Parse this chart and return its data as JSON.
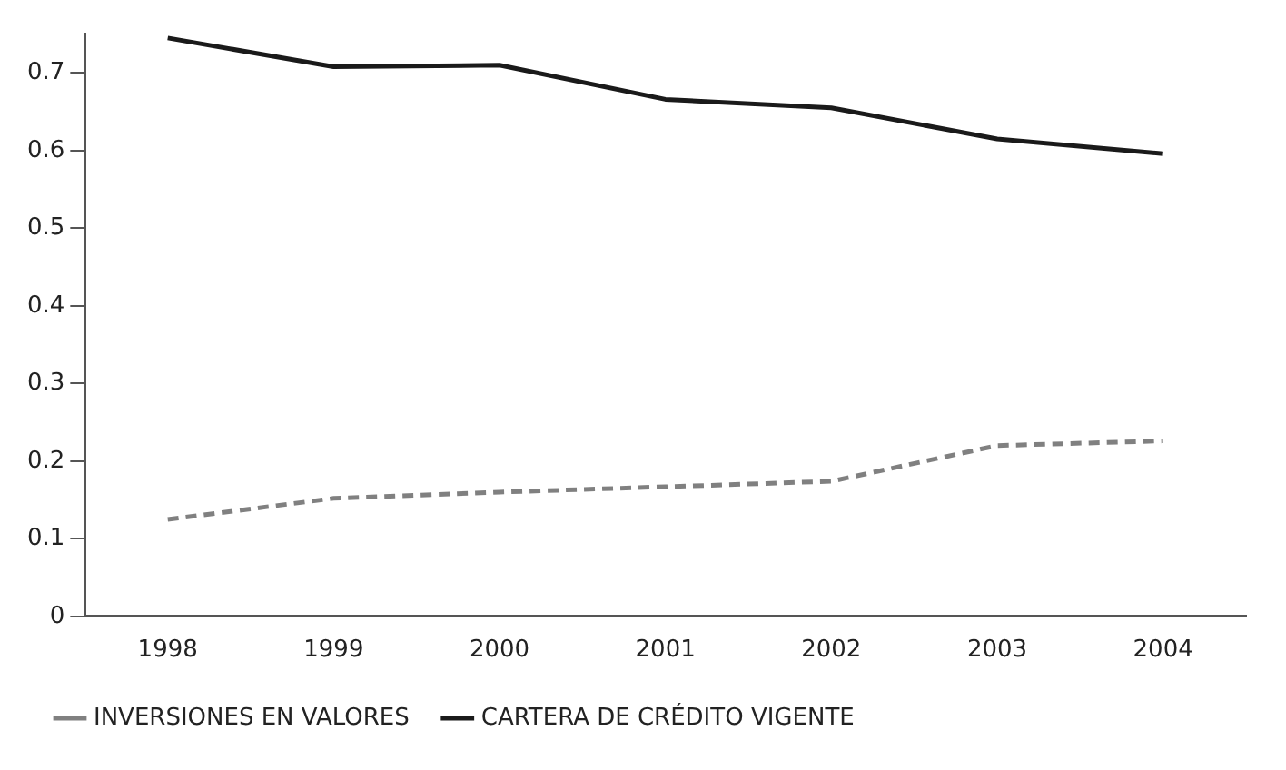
{
  "chart_data": {
    "type": "line",
    "categories": [
      "1998",
      "1999",
      "2000",
      "2001",
      "2002",
      "2003",
      "2004"
    ],
    "series": [
      {
        "name": "INVERSIONES EN VALORES",
        "color": "#808080",
        "line_style": "dashed",
        "values": [
          0.125,
          0.152,
          0.16,
          0.167,
          0.174,
          0.22,
          0.226
        ]
      },
      {
        "name": "CARTERA DE CRÉDITO VIGENTE",
        "color": "#1a1a1a",
        "line_style": "solid",
        "values": [
          0.745,
          0.708,
          0.71,
          0.666,
          0.655,
          0.615,
          0.596
        ]
      }
    ],
    "ylim": [
      0,
      0.75
    ],
    "yticks": [
      0,
      0.1,
      0.2,
      0.3,
      0.4,
      0.5,
      0.6,
      0.7
    ],
    "grid": false,
    "legend": "bottom left",
    "marker": "none"
  }
}
